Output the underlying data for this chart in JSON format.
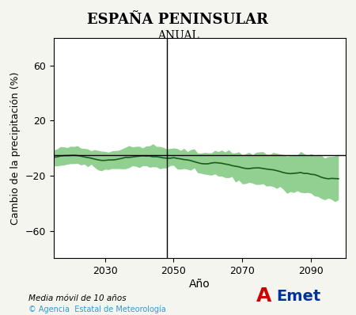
{
  "title": "ESPAÑA PENINSULAR",
  "subtitle": "ANUAL",
  "xlabel": "Año",
  "ylabel": "Cambio de la precipitación (%)",
  "footer_left": "Media móvil de 10 años",
  "footer_copyright": "© Agencia  Estatal de Meteorología",
  "xmin": 2015,
  "xmax": 2100,
  "ymin": -80,
  "ymax": 80,
  "yticks": [
    -60,
    -20,
    20,
    60
  ],
  "xticks": [
    2030,
    2050,
    2070,
    2090
  ],
  "vline_x": 2048,
  "hline_y": -5,
  "mean_start_year": 2015,
  "mean_end_year": 2098,
  "bg_color": "#f5f5f0",
  "plot_bg_color": "#ffffff",
  "line_color": "#1a5c1a",
  "fill_color": "#7ec87e",
  "line_width": 1.2
}
